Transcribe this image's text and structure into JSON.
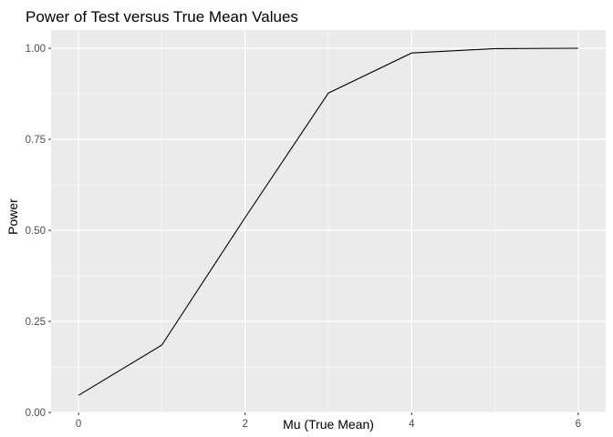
{
  "chart_data": {
    "type": "line",
    "title": "Power of Test versus True Mean Values",
    "xlabel": "Mu (True Mean)",
    "ylabel": "Power",
    "x": [
      0,
      1,
      2,
      3,
      4,
      5,
      6
    ],
    "series": [
      {
        "values": [
          0.047,
          0.185,
          0.535,
          0.877,
          0.987,
          0.999,
          1.0
        ]
      }
    ],
    "xlim": [
      -0.33,
      6.33
    ],
    "ylim": [
      0,
      1.05
    ],
    "xticks": [
      "0",
      "2",
      "4",
      "6"
    ],
    "yticks": [
      "0.00",
      "0.25",
      "0.50",
      "0.75",
      "1.00"
    ],
    "grid": true,
    "line_color": "#000000",
    "panel_background": "#ebebeb",
    "grid_color": "#ffffff"
  }
}
